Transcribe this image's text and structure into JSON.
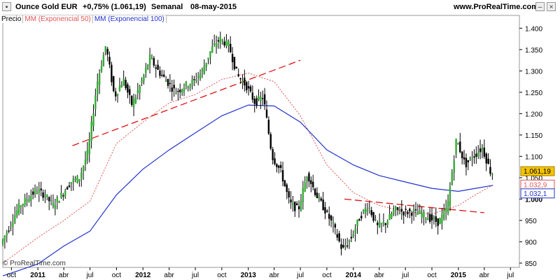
{
  "header": {
    "instrument": "Ounce Gold EUR",
    "change": "+0,75% (1.061,19)",
    "timeframe": "Semanal",
    "date": "08-may-2015",
    "site": "www.ProRealTime.com"
  },
  "legend": {
    "price": "Precio",
    "ma50": "MM (Exponencial 50)",
    "ma100": "MM (Exponencial 100)"
  },
  "credit": "© ProRealTime.com",
  "colors": {
    "up": "#33aa33",
    "down": "#000000",
    "ma50": "#e05555",
    "ma100": "#2233cc",
    "trend": "#dd1111",
    "price_badge": "#f5c400"
  },
  "chart_data": {
    "type": "line",
    "x_label_type": "date",
    "x_range": [
      "2010-09-01",
      "2015-08-01"
    ],
    "ylim": [
      840,
      1430
    ],
    "y_ticks": [
      850,
      900,
      950,
      1000,
      1050,
      1100,
      1150,
      1200,
      1250,
      1300,
      1350,
      1400
    ],
    "y_tick_labels": [
      "850",
      "900",
      "950",
      "1.000",
      "1.050",
      "1.100",
      "1.150",
      "1.200",
      "1.250",
      "1.300",
      "1.350",
      "1.400"
    ],
    "x_ticks": [
      {
        "date": "2010-10-01",
        "label": "oct",
        "year": false
      },
      {
        "date": "2011-01-01",
        "label": "2011",
        "year": true
      },
      {
        "date": "2011-04-01",
        "label": "abr",
        "year": false
      },
      {
        "date": "2011-07-01",
        "label": "jul",
        "year": false
      },
      {
        "date": "2011-10-01",
        "label": "oct",
        "year": false
      },
      {
        "date": "2012-01-01",
        "label": "2012",
        "year": true
      },
      {
        "date": "2012-04-01",
        "label": "abr",
        "year": false
      },
      {
        "date": "2012-07-01",
        "label": "jul",
        "year": false
      },
      {
        "date": "2012-10-01",
        "label": "oct",
        "year": false
      },
      {
        "date": "2013-01-01",
        "label": "2013",
        "year": true
      },
      {
        "date": "2013-04-01",
        "label": "abr",
        "year": false
      },
      {
        "date": "2013-07-01",
        "label": "jul",
        "year": false
      },
      {
        "date": "2013-10-01",
        "label": "oct",
        "year": false
      },
      {
        "date": "2014-01-01",
        "label": "2014",
        "year": true
      },
      {
        "date": "2014-04-01",
        "label": "abr",
        "year": false
      },
      {
        "date": "2014-07-01",
        "label": "jul",
        "year": false
      },
      {
        "date": "2014-10-01",
        "label": "oct",
        "year": false
      },
      {
        "date": "2015-01-01",
        "label": "2015",
        "year": true
      },
      {
        "date": "2015-04-01",
        "label": "abr",
        "year": false
      },
      {
        "date": "2015-07-01",
        "label": "jul",
        "year": false
      }
    ],
    "price_series": {
      "name": "Precio",
      "points": [
        [
          "2010-09-01",
          895
        ],
        [
          "2010-10-01",
          935
        ],
        [
          "2010-11-01",
          980
        ],
        [
          "2010-12-01",
          1000
        ],
        [
          "2011-01-01",
          1020
        ],
        [
          "2011-02-01",
          1010
        ],
        [
          "2011-03-01",
          985
        ],
        [
          "2011-04-01",
          1010
        ],
        [
          "2011-05-01",
          1040
        ],
        [
          "2011-06-01",
          1050
        ],
        [
          "2011-07-01",
          1110
        ],
        [
          "2011-08-01",
          1270
        ],
        [
          "2011-09-01",
          1360
        ],
        [
          "2011-10-01",
          1240
        ],
        [
          "2011-11-01",
          1280
        ],
        [
          "2011-12-01",
          1220
        ],
        [
          "2012-01-01",
          1270
        ],
        [
          "2012-02-01",
          1330
        ],
        [
          "2012-03-01",
          1300
        ],
        [
          "2012-04-01",
          1275
        ],
        [
          "2012-05-01",
          1250
        ],
        [
          "2012-06-01",
          1265
        ],
        [
          "2012-07-01",
          1275
        ],
        [
          "2012-08-01",
          1300
        ],
        [
          "2012-09-01",
          1350
        ],
        [
          "2012-10-01",
          1375
        ],
        [
          "2012-11-01",
          1360
        ],
        [
          "2012-12-01",
          1290
        ],
        [
          "2013-01-01",
          1265
        ],
        [
          "2013-02-01",
          1225
        ],
        [
          "2013-03-01",
          1240
        ],
        [
          "2013-04-01",
          1100
        ],
        [
          "2013-05-01",
          1065
        ],
        [
          "2013-06-01",
          990
        ],
        [
          "2013-07-01",
          975
        ],
        [
          "2013-08-01",
          1060
        ],
        [
          "2013-09-01",
          1010
        ],
        [
          "2013-10-01",
          975
        ],
        [
          "2013-11-01",
          935
        ],
        [
          "2013-12-01",
          880
        ],
        [
          "2014-01-01",
          910
        ],
        [
          "2014-02-01",
          960
        ],
        [
          "2014-03-01",
          985
        ],
        [
          "2014-04-01",
          935
        ],
        [
          "2014-05-01",
          945
        ],
        [
          "2014-06-01",
          975
        ],
        [
          "2014-07-01",
          970
        ],
        [
          "2014-08-01",
          970
        ],
        [
          "2014-09-01",
          965
        ],
        [
          "2014-10-01",
          955
        ],
        [
          "2014-11-01",
          945
        ],
        [
          "2014-12-01",
          980
        ],
        [
          "2015-01-01",
          1140
        ],
        [
          "2015-02-01",
          1080
        ],
        [
          "2015-03-01",
          1100
        ],
        [
          "2015-04-01",
          1120
        ],
        [
          "2015-05-01",
          1061.19
        ]
      ]
    },
    "series": [
      {
        "name": "MM (Exponencial 50)",
        "style": "dashed",
        "points": [
          [
            "2010-09-01",
            850
          ],
          [
            "2011-01-01",
            910
          ],
          [
            "2011-04-01",
            950
          ],
          [
            "2011-07-01",
            995
          ],
          [
            "2011-10-01",
            1130
          ],
          [
            "2012-01-01",
            1180
          ],
          [
            "2012-04-01",
            1225
          ],
          [
            "2012-07-01",
            1245
          ],
          [
            "2012-10-01",
            1280
          ],
          [
            "2013-01-01",
            1295
          ],
          [
            "2013-04-01",
            1275
          ],
          [
            "2013-07-01",
            1195
          ],
          [
            "2013-10-01",
            1080
          ],
          [
            "2014-01-01",
            1015
          ],
          [
            "2014-04-01",
            985
          ],
          [
            "2014-07-01",
            970
          ],
          [
            "2014-10-01",
            965
          ],
          [
            "2015-01-01",
            985
          ],
          [
            "2015-03-01",
            1010
          ],
          [
            "2015-05-01",
            1032.9
          ]
        ]
      },
      {
        "name": "MM (Exponencial 100)",
        "style": "solid",
        "points": [
          [
            "2010-09-01",
            820
          ],
          [
            "2011-01-01",
            848
          ],
          [
            "2011-04-01",
            890
          ],
          [
            "2011-07-01",
            925
          ],
          [
            "2011-10-01",
            1010
          ],
          [
            "2012-01-01",
            1070
          ],
          [
            "2012-04-01",
            1115
          ],
          [
            "2012-07-01",
            1155
          ],
          [
            "2012-10-01",
            1195
          ],
          [
            "2013-01-01",
            1220
          ],
          [
            "2013-04-01",
            1218
          ],
          [
            "2013-07-01",
            1180
          ],
          [
            "2013-10-01",
            1115
          ],
          [
            "2014-01-01",
            1080
          ],
          [
            "2014-04-01",
            1055
          ],
          [
            "2014-07-01",
            1040
          ],
          [
            "2014-10-01",
            1025
          ],
          [
            "2015-01-01",
            1018
          ],
          [
            "2015-03-01",
            1025
          ],
          [
            "2015-05-01",
            1032.1
          ]
        ]
      }
    ],
    "trendlines": [
      {
        "from": [
          "2011-05-01",
          1125
        ],
        "to": [
          "2013-07-01",
          1325
        ]
      },
      {
        "from": [
          "2013-12-01",
          1000
        ],
        "to": [
          "2015-04-01",
          968
        ]
      }
    ],
    "badges": [
      {
        "label": "1.061,19",
        "value": 1061.19,
        "style": "price"
      },
      {
        "label": "1.032,9",
        "value": 1032.9,
        "style": "ma50"
      },
      {
        "label": "1.032,1",
        "value": 1032.1,
        "style": "ma100"
      }
    ]
  }
}
